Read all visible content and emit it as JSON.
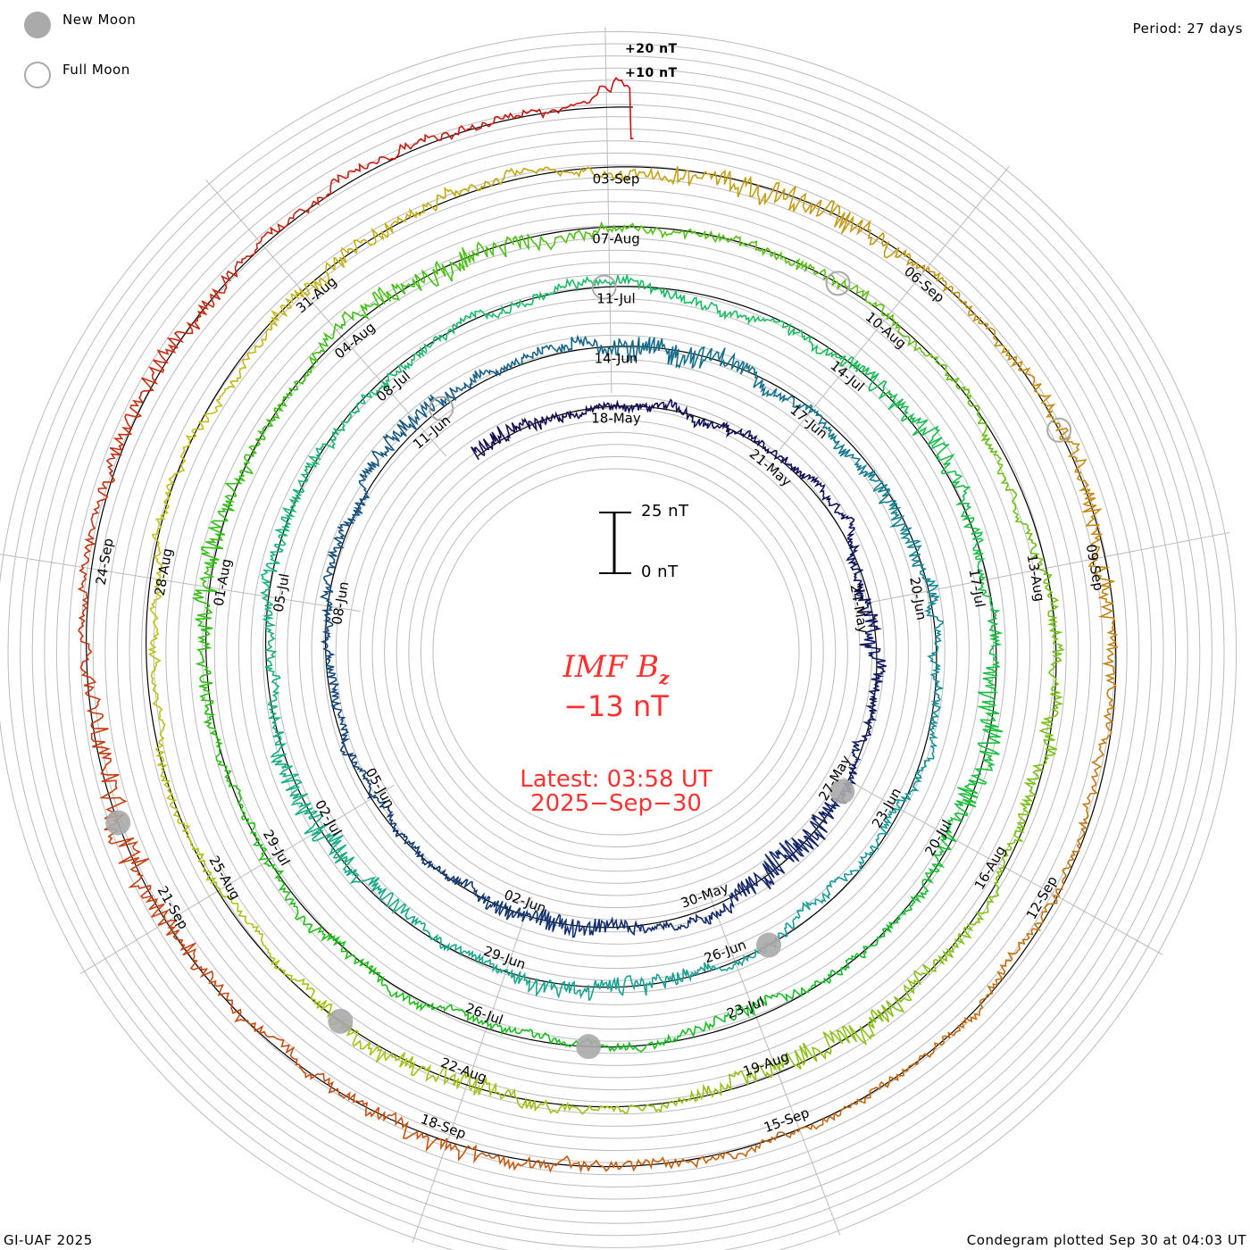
{
  "legend": {
    "new_moon": "New Moon",
    "full_moon": "Full Moon"
  },
  "period": "Period: 27 days",
  "ring_labels": {
    "plus20": "+20 nT",
    "plus10": "+10 nT"
  },
  "scale": {
    "top": "25 nT",
    "bottom": "0 nT"
  },
  "center": {
    "title_main": "IMF B",
    "title_sub": "z",
    "value": "−13 nT",
    "latest": "Latest: 03:58 UT",
    "date": "2025−Sep−30"
  },
  "footer": {
    "left": "GI-UAF 2025",
    "right": "Condegram plotted Sep 30 at 04:03 UT"
  },
  "chart_data": {
    "type": "line",
    "subtype": "polar spiral condegram",
    "title": "IMF Bz",
    "units": "nT",
    "period_days": 27,
    "start": "15-May 08:00",
    "top_reference": "18-May 00:00",
    "end": "30-Sep 03:58",
    "latest_value": -13,
    "scale_bar_nT": 25,
    "date_labels": [
      "18-May",
      "21-May",
      "24-May",
      "27-May",
      "30-May",
      "02-Jun",
      "05-Jun",
      "08-Jun",
      "11-Jun",
      "14-Jun",
      "17-Jun",
      "20-Jun",
      "23-Jun",
      "26-Jun",
      "29-Jun",
      "02-Jul",
      "05-Jul",
      "08-Jul",
      "11-Jul",
      "14-Jul",
      "17-Jul",
      "20-Jul",
      "23-Jul",
      "26-Jul",
      "29-Jul",
      "01-Aug",
      "04-Aug",
      "07-Aug",
      "10-Aug",
      "13-Aug",
      "16-Aug",
      "19-Aug",
      "22-Aug",
      "25-Aug",
      "28-Aug",
      "31-Aug",
      "03-Sep",
      "06-Sep",
      "09-Sep",
      "12-Sep",
      "15-Sep",
      "18-Sep",
      "21-Sep",
      "24-Sep"
    ],
    "new_moons": [
      "27-May 03:02",
      "25-Jun 10:31",
      "24-Jul 19:11",
      "23-Aug 06:06",
      "21-Sep 19:54"
    ],
    "full_moons": [
      "11-Jun 07:44",
      "10-Jul 20:37",
      "09-Aug 07:55",
      "07-Sep 18:09"
    ],
    "colors": {
      "start": "#1a0a4a",
      "end": "#c41010",
      "grid": "#bbbbbb",
      "zero_line": "#000000",
      "moon": "#aaaaaa",
      "text_accent": "#ff3030"
    }
  }
}
